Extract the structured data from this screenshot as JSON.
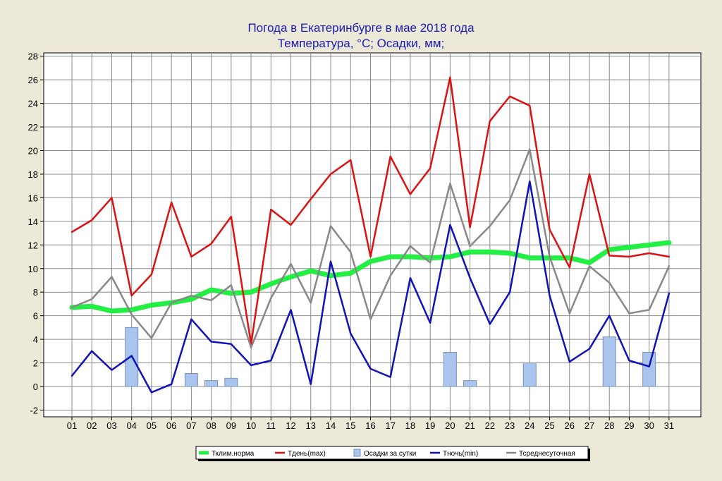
{
  "chart_data": {
    "type": "line",
    "title": "Погода в Екатеринбурге в мае 2018 года",
    "subtitle": "Температура, °С; Осадки, мм;",
    "xlabel": "",
    "ylabel": "",
    "categories": [
      "01",
      "02",
      "03",
      "04",
      "05",
      "06",
      "07",
      "08",
      "09",
      "10",
      "11",
      "12",
      "13",
      "14",
      "15",
      "16",
      "17",
      "18",
      "19",
      "20",
      "21",
      "22",
      "23",
      "24",
      "25",
      "26",
      "27",
      "28",
      "29",
      "30",
      "31"
    ],
    "ylim": [
      -2.5,
      28
    ],
    "yticks": [
      -2,
      0,
      2,
      4,
      6,
      8,
      10,
      12,
      14,
      16,
      18,
      20,
      22,
      24,
      26,
      28
    ],
    "ytick_labels": [
      "-2",
      "0",
      "2",
      "4",
      "6",
      "8",
      "10",
      "12",
      "14",
      "16",
      "18",
      "20",
      "22",
      "24",
      "26",
      "28"
    ],
    "grid": true,
    "legend_position": "bottom",
    "series": [
      {
        "name": "Тклим.норма",
        "kind": "line",
        "color": "#22ee44",
        "values": [
          6.7,
          6.8,
          6.4,
          6.5,
          6.9,
          7.1,
          7.4,
          8.2,
          7.9,
          8.0,
          8.7,
          9.3,
          9.8,
          9.4,
          9.6,
          10.6,
          11.0,
          11.0,
          10.9,
          11.0,
          11.4,
          11.4,
          11.3,
          10.9,
          10.9,
          10.9,
          10.5,
          11.6,
          11.8,
          12.0,
          12.2
        ]
      },
      {
        "name": "Тдень(max)",
        "kind": "line",
        "color": "#dd1111",
        "values": [
          13.1,
          14.1,
          16.0,
          7.7,
          9.5,
          15.6,
          11.0,
          12.1,
          14.4,
          3.6,
          15.0,
          13.7,
          15.9,
          18.0,
          19.2,
          11.0,
          19.5,
          16.3,
          18.5,
          26.2,
          13.5,
          22.5,
          24.6,
          23.8,
          13.3,
          10.1,
          18.0,
          11.1,
          11.0,
          11.3,
          11.0
        ]
      },
      {
        "name": "Осадки за сутки",
        "kind": "bar",
        "color": "#a9c5ee",
        "values": [
          0,
          0,
          0,
          5.0,
          0,
          0,
          1.1,
          0.5,
          0.7,
          0,
          0,
          0,
          0,
          0,
          0,
          0,
          0,
          0,
          0,
          2.9,
          0.5,
          0,
          0,
          2.0,
          0,
          0,
          0,
          4.2,
          0,
          2.9,
          0
        ]
      },
      {
        "name": "Тночь(min)",
        "kind": "line",
        "color": "#1111bb",
        "values": [
          0.9,
          3.0,
          1.4,
          2.6,
          -0.5,
          0.2,
          5.7,
          3.8,
          3.6,
          1.8,
          2.2,
          6.5,
          0.2,
          10.6,
          4.5,
          1.5,
          0.8,
          9.2,
          5.4,
          13.7,
          9.2,
          5.3,
          8.0,
          17.4,
          7.7,
          2.1,
          3.2,
          6.0,
          2.2,
          1.7,
          7.9
        ]
      },
      {
        "name": "Тсреднесуточная",
        "kind": "line",
        "color": "#888888",
        "values": [
          6.7,
          7.4,
          9.3,
          6.1,
          4.1,
          7.1,
          7.7,
          7.3,
          8.6,
          3.3,
          7.5,
          10.4,
          7.1,
          13.6,
          11.4,
          5.7,
          9.4,
          11.9,
          10.5,
          17.2,
          11.9,
          13.6,
          15.8,
          20.1,
          11.0,
          6.2,
          10.2,
          8.8,
          6.2,
          6.5,
          10.2
        ]
      }
    ]
  }
}
